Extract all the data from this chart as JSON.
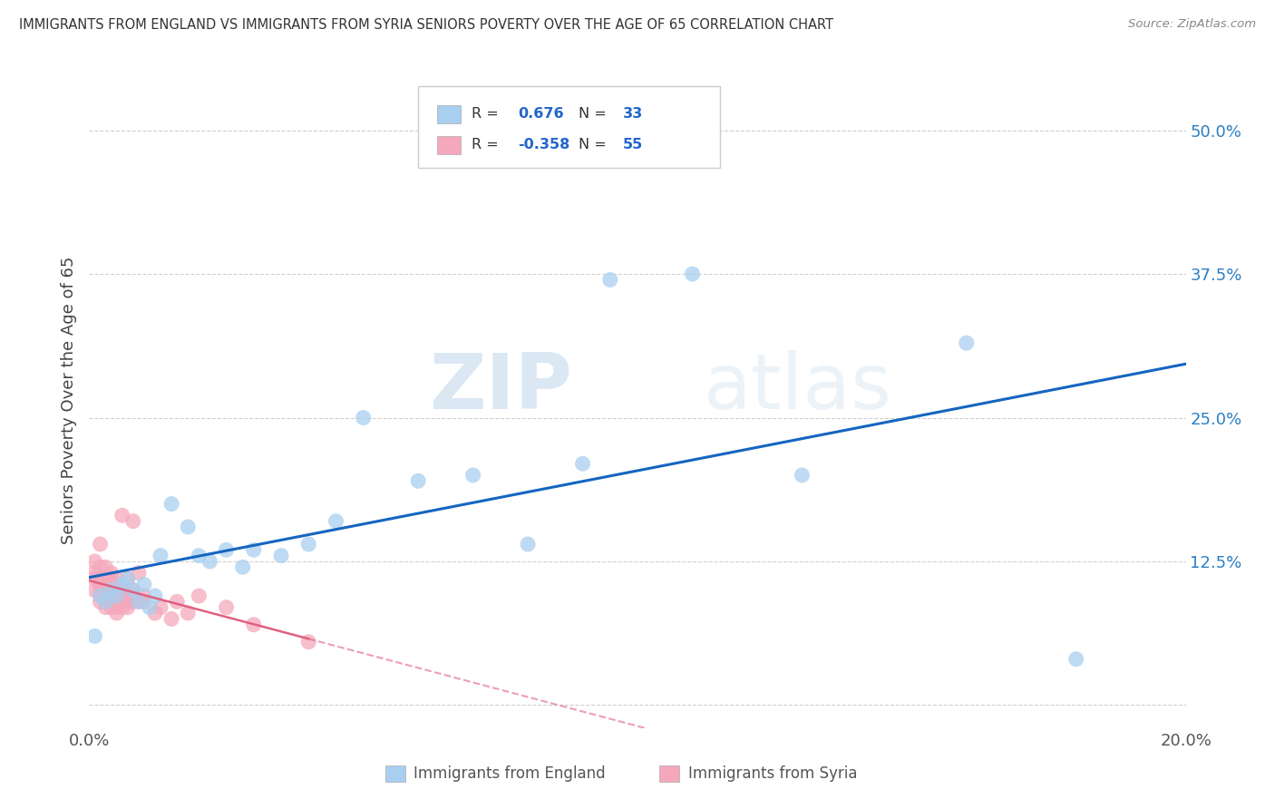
{
  "title": "IMMIGRANTS FROM ENGLAND VS IMMIGRANTS FROM SYRIA SENIORS POVERTY OVER THE AGE OF 65 CORRELATION CHART",
  "source": "Source: ZipAtlas.com",
  "ylabel": "Seniors Poverty Over the Age of 65",
  "xlabel_england": "Immigrants from England",
  "xlabel_syria": "Immigrants from Syria",
  "r_england": 0.676,
  "n_england": 33,
  "r_syria": -0.358,
  "n_syria": 55,
  "xlim": [
    0.0,
    0.2
  ],
  "ylim": [
    -0.02,
    0.55
  ],
  "yticks": [
    0.0,
    0.125,
    0.25,
    0.375,
    0.5
  ],
  "ytick_labels": [
    "",
    "12.5%",
    "25.0%",
    "37.5%",
    "50.0%"
  ],
  "xticks": [
    0.0,
    0.04,
    0.08,
    0.12,
    0.16,
    0.2
  ],
  "xtick_labels": [
    "0.0%",
    "",
    "",
    "",
    "",
    "20.0%"
  ],
  "color_england": "#a8cff0",
  "color_syria": "#f5a8bc",
  "line_england": "#1565c0",
  "line_syria": "#e06080",
  "background_color": "#ffffff",
  "watermark_zip": "ZIP",
  "watermark_atlas": "atlas",
  "england_x": [
    0.001,
    0.002,
    0.003,
    0.004,
    0.005,
    0.006,
    0.007,
    0.008,
    0.009,
    0.01,
    0.011,
    0.012,
    0.013,
    0.015,
    0.018,
    0.02,
    0.022,
    0.025,
    0.028,
    0.03,
    0.035,
    0.04,
    0.045,
    0.05,
    0.06,
    0.07,
    0.08,
    0.09,
    0.095,
    0.11,
    0.13,
    0.16,
    0.18
  ],
  "england_y": [
    0.06,
    0.095,
    0.09,
    0.1,
    0.095,
    0.105,
    0.11,
    0.1,
    0.09,
    0.105,
    0.085,
    0.095,
    0.13,
    0.175,
    0.155,
    0.13,
    0.125,
    0.135,
    0.12,
    0.135,
    0.13,
    0.14,
    0.16,
    0.25,
    0.195,
    0.2,
    0.14,
    0.21,
    0.37,
    0.375,
    0.2,
    0.315,
    0.04
  ],
  "syria_x": [
    0.001,
    0.001,
    0.001,
    0.001,
    0.002,
    0.002,
    0.002,
    0.002,
    0.002,
    0.002,
    0.002,
    0.003,
    0.003,
    0.003,
    0.003,
    0.003,
    0.003,
    0.003,
    0.004,
    0.004,
    0.004,
    0.004,
    0.004,
    0.004,
    0.005,
    0.005,
    0.005,
    0.005,
    0.005,
    0.006,
    0.006,
    0.006,
    0.006,
    0.006,
    0.007,
    0.007,
    0.007,
    0.007,
    0.008,
    0.008,
    0.008,
    0.008,
    0.009,
    0.009,
    0.01,
    0.01,
    0.012,
    0.013,
    0.015,
    0.016,
    0.018,
    0.02,
    0.025,
    0.03,
    0.04
  ],
  "syria_y": [
    0.1,
    0.11,
    0.115,
    0.125,
    0.09,
    0.095,
    0.1,
    0.105,
    0.11,
    0.12,
    0.14,
    0.085,
    0.09,
    0.095,
    0.1,
    0.105,
    0.11,
    0.12,
    0.085,
    0.09,
    0.095,
    0.1,
    0.11,
    0.115,
    0.08,
    0.085,
    0.095,
    0.1,
    0.11,
    0.085,
    0.09,
    0.095,
    0.1,
    0.165,
    0.085,
    0.09,
    0.095,
    0.11,
    0.09,
    0.095,
    0.1,
    0.16,
    0.09,
    0.115,
    0.09,
    0.095,
    0.08,
    0.085,
    0.075,
    0.09,
    0.08,
    0.095,
    0.085,
    0.07,
    0.055
  ]
}
